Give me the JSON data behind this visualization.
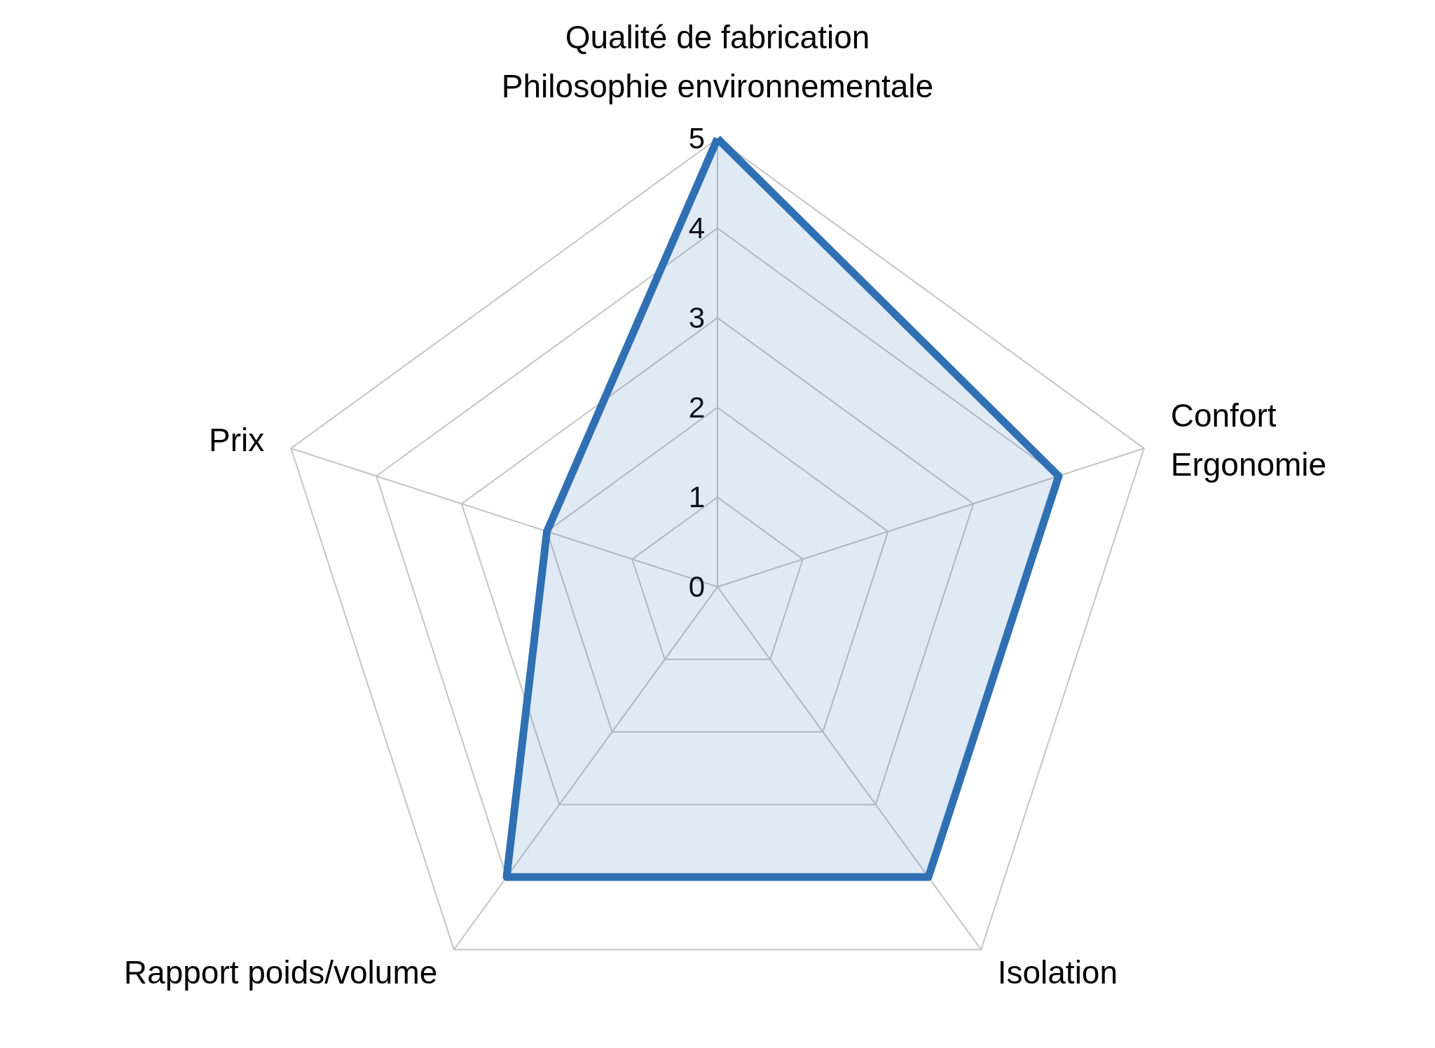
{
  "chart_data": {
    "type": "radar",
    "categories": [
      "Qualité de fabrication\nPhilosophie environnementale",
      "Confort\nErgonomie",
      "Isolation",
      "Rapport poids/volume",
      "Prix"
    ],
    "series": [
      {
        "color": "#3070b3",
        "values": [
          5,
          4,
          4,
          4,
          2
        ]
      }
    ],
    "ylim": [
      0,
      5
    ],
    "yticks": [
      0,
      1,
      2,
      3,
      4,
      5
    ],
    "grid": true,
    "marker": "none"
  }
}
